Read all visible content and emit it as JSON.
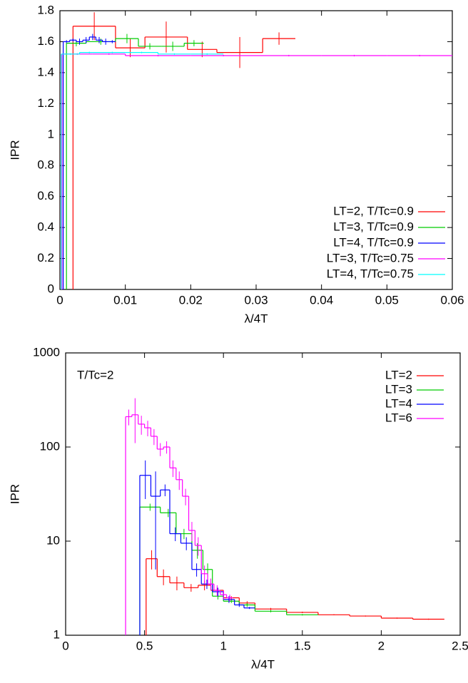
{
  "chart_data": [
    {
      "type": "step",
      "xlabel": "λ/4T",
      "ylabel": "IPR",
      "xlim": [
        0,
        0.06
      ],
      "ylim": [
        0,
        1.8
      ],
      "xticks": [
        0,
        0.01,
        0.02,
        0.03,
        0.04,
        0.05,
        0.06
      ],
      "yticks": [
        0,
        0.2,
        0.4,
        0.6,
        0.8,
        1,
        1.2,
        1.4,
        1.6,
        1.8
      ],
      "log_y": false,
      "legend": "lower right",
      "series": [
        {
          "name": "LT=2, T/Tc=0.9",
          "color": "#ff0000",
          "bins": [
            0.002,
            0.0085,
            0.013,
            0.0195,
            0.024,
            0.031,
            0.036
          ],
          "values": [
            1.7,
            1.56,
            1.63,
            1.55,
            1.53,
            1.62
          ],
          "errors": [
            0.09,
            0.06,
            0.1,
            0.05,
            0.1,
            0.04
          ]
        },
        {
          "name": "LT=3, T/Tc=0.9",
          "color": "#00cc00",
          "bins": [
            0.001,
            0.004,
            0.0085,
            0.012,
            0.0155,
            0.019,
            0.022
          ],
          "values": [
            1.59,
            1.6,
            1.62,
            1.57,
            1.57,
            1.59
          ],
          "errors": [
            0.02,
            0.02,
            0.03,
            0.02,
            0.03,
            0.02
          ]
        },
        {
          "name": "LT=4, T/Tc=0.9",
          "color": "#0000ff",
          "bins": [
            0.0005,
            0.0015,
            0.0025,
            0.0035,
            0.0045,
            0.0055,
            0.0065,
            0.0075,
            0.0085
          ],
          "values": [
            1.6,
            1.61,
            1.6,
            1.61,
            1.63,
            1.61,
            1.6,
            1.6
          ],
          "errors": [
            0.01,
            0.01,
            0.02,
            0.02,
            0.02,
            0.02,
            0.02,
            0.01
          ]
        },
        {
          "name": "LT=3, T/Tc=0.75",
          "color": "#ff00ff",
          "bins": [
            0.0003,
            0.005,
            0.01,
            0.02,
            0.03,
            0.04,
            0.05,
            0.06
          ],
          "values": [
            1.52,
            1.52,
            1.51,
            1.51,
            1.51,
            1.51,
            1.51
          ],
          "errors": [
            0.005,
            0.005,
            0.005,
            0.005,
            0.005,
            0.005,
            0.005
          ]
        },
        {
          "name": "LT=4, T/Tc=0.75",
          "color": "#00ffff",
          "bins": [
            0.0002,
            0.003,
            0.006,
            0.01,
            0.015,
            0.02,
            0.025
          ],
          "values": [
            1.52,
            1.53,
            1.53,
            1.53,
            1.52,
            1.52
          ],
          "errors": [
            0.005,
            0.005,
            0.005,
            0.005,
            0.005,
            0.005
          ]
        }
      ]
    },
    {
      "type": "step",
      "xlabel": "λ/4T",
      "ylabel": "IPR",
      "annotation": "T/Tc=2",
      "xlim": [
        0,
        2.5
      ],
      "ylim": [
        1,
        1000
      ],
      "xticks": [
        0,
        0.5,
        1,
        1.5,
        2,
        2.5
      ],
      "yticks": [
        1,
        10,
        100,
        1000
      ],
      "log_y": true,
      "legend": "upper right",
      "series": [
        {
          "name": "LT=2",
          "color": "#ff0000",
          "bins": [
            0.51,
            0.58,
            0.66,
            0.75,
            0.84,
            0.92,
            1.0,
            1.1,
            1.2,
            1.4,
            1.6,
            1.8,
            2.0,
            2.2,
            2.4
          ],
          "values": [
            6.5,
            4.2,
            3.6,
            3.2,
            3.4,
            3.0,
            2.5,
            2.2,
            1.9,
            1.75,
            1.65,
            1.6,
            1.52,
            1.48
          ],
          "errors": [
            1.5,
            0.8,
            0.6,
            0.3,
            0.4,
            0.2,
            0.1,
            0.1,
            0.05,
            0.03,
            0.02,
            0.02,
            0.02,
            0.02
          ]
        },
        {
          "name": "LT=3",
          "color": "#00cc00",
          "bins": [
            0.47,
            0.6,
            0.7,
            0.8,
            0.87,
            0.93,
            1.0,
            1.1,
            1.2,
            1.4,
            1.6
          ],
          "values": [
            23,
            20,
            12,
            8,
            5,
            2.6,
            2.3,
            2.1,
            1.8,
            1.65
          ],
          "errors": [
            2,
            2,
            1.5,
            1.5,
            0.8,
            0.2,
            0.1,
            0.1,
            0.05,
            0.03
          ]
        },
        {
          "name": "LT=4",
          "color": "#0000ff",
          "bins": [
            0.47,
            0.54,
            0.6,
            0.66,
            0.73,
            0.8,
            0.86,
            0.93,
            1.0,
            1.07,
            1.13,
            1.2
          ],
          "values": [
            50,
            30,
            35,
            12,
            9.5,
            5,
            3.5,
            2.9,
            2.4,
            2.1,
            1.95
          ],
          "errors": [
            22,
            25,
            5,
            2,
            1.5,
            0.8,
            0.4,
            0.3,
            0.2,
            0.1,
            0.05
          ]
        },
        {
          "name": "LT=6",
          "color": "#ff00ff",
          "bins": [
            0.38,
            0.42,
            0.46,
            0.5,
            0.54,
            0.58,
            0.62,
            0.66,
            0.7,
            0.74,
            0.78,
            0.82,
            0.86,
            0.9,
            0.94,
            0.98,
            1.02,
            1.06
          ],
          "values": [
            210,
            220,
            175,
            160,
            130,
            95,
            100,
            60,
            45,
            30,
            13,
            9,
            4.5,
            3.5,
            3.0,
            2.7,
            2.5
          ],
          "errors": [
            40,
            110,
            40,
            30,
            25,
            15,
            15,
            12,
            10,
            6,
            3,
            2,
            1,
            0.5,
            0.4,
            0.3,
            0.2
          ]
        }
      ]
    }
  ]
}
